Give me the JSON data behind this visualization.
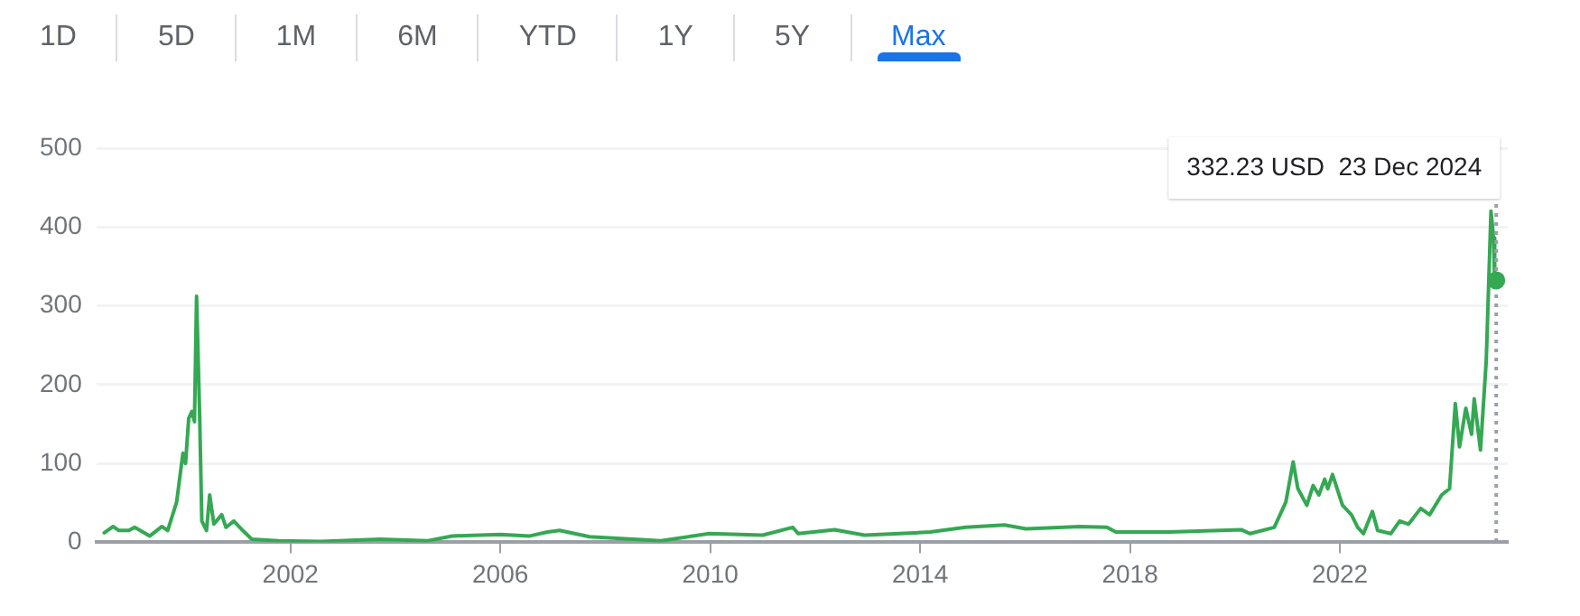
{
  "chart_data": {
    "type": "line",
    "annotations": [
      "1D",
      "5D",
      "1M",
      "6M",
      "YTD",
      "1Y",
      "5Y",
      "Max",
      "332.23 USD  23 Dec 2024"
    ],
    "x": [
      1998.45,
      1998.62,
      1998.73,
      1998.92,
      1999.03,
      1999.32,
      1999.55,
      1999.66,
      1999.83,
      1999.95,
      2000.0,
      2000.06,
      2000.12,
      2000.17,
      2000.21,
      2000.27,
      2000.31,
      2000.4,
      2000.46,
      2000.54,
      2000.69,
      2000.77,
      2000.92,
      2001.09,
      2001.26,
      2001.77,
      2002.57,
      2003.71,
      2004.62,
      2005.08,
      2005.99,
      2006.56,
      2006.9,
      2007.13,
      2007.7,
      2009.06,
      2009.98,
      2011.0,
      2011.57,
      2011.68,
      2012.37,
      2012.94,
      2014.19,
      2014.87,
      2015.61,
      2016.02,
      2017.04,
      2017.56,
      2017.73,
      2018.75,
      2020.12,
      2020.29,
      2020.75,
      2020.97,
      2021.11,
      2021.2,
      2021.37,
      2021.49,
      2021.6,
      2021.71,
      2021.77,
      2021.86,
      2022.05,
      2022.22,
      2022.34,
      2022.45,
      2022.62,
      2022.72,
      2022.97,
      2023.14,
      2023.31,
      2023.54,
      2023.71,
      2023.94,
      2024.09,
      2024.2,
      2024.28,
      2024.4,
      2024.51,
      2024.56,
      2024.68,
      2024.79,
      2024.88,
      2024.93,
      2024.95,
      2024.98
    ],
    "series": [
      {
        "color": "#34a853",
        "values": [
          12,
          20,
          15,
          15,
          19,
          8,
          20,
          15,
          51,
          113,
          100,
          157,
          166,
          153,
          312,
          157,
          27,
          15,
          60,
          23,
          35,
          19,
          27,
          15,
          4,
          2,
          1,
          4,
          2,
          8,
          10,
          8,
          13,
          15,
          7,
          2,
          11,
          9,
          19,
          11,
          16,
          9,
          13,
          19,
          22,
          17,
          20,
          19,
          13,
          13,
          16,
          11,
          19,
          51,
          102,
          68,
          47,
          72,
          60,
          80,
          68,
          86,
          47,
          35,
          19,
          11,
          39,
          15,
          11,
          27,
          23,
          43,
          35,
          60,
          68,
          176,
          121,
          170,
          137,
          182,
          117,
          231,
          420,
          386,
          329,
          332.23
        ]
      }
    ],
    "xlim": [
      1998.3,
      2025.2
    ],
    "xticks": [
      2002,
      2006,
      2010,
      2014,
      2018,
      2022
    ],
    "ylim": [
      0,
      500
    ],
    "yticks": [
      0,
      100,
      200,
      300,
      400,
      500
    ],
    "grid": "y",
    "legend": false,
    "marker": "none",
    "line_style": "solid",
    "ref_lines": [
      {
        "axis": "x",
        "value": 2024.98,
        "color": "#9aa0a6",
        "line_style": "dotted"
      }
    ]
  }
}
